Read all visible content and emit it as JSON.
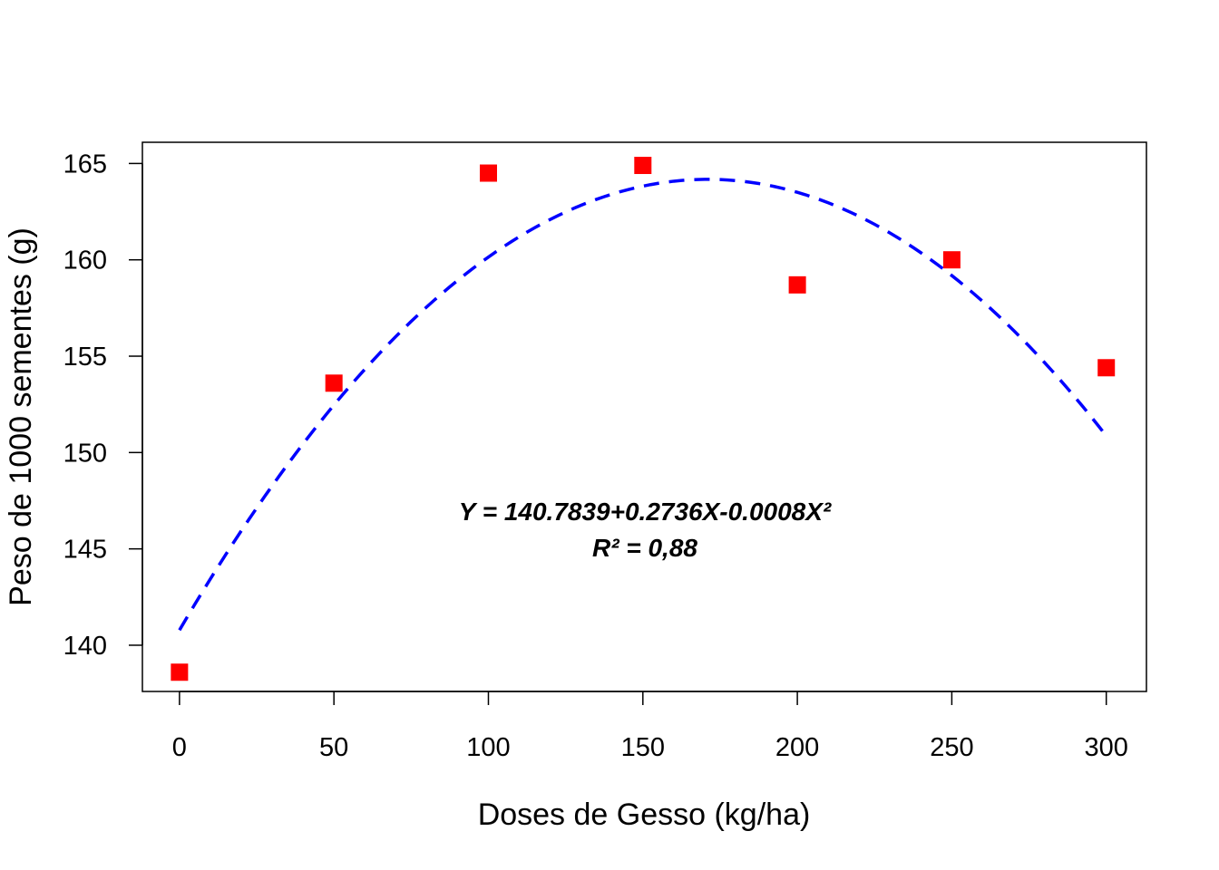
{
  "chart_data": {
    "type": "scatter",
    "xlabel": "Doses de Gesso (kg/ha)",
    "ylabel": "Peso de 1000 sementes (g)",
    "xlim": [
      -12,
      313
    ],
    "ylim": [
      137.6,
      166.1
    ],
    "x_ticks": [
      0,
      50,
      100,
      150,
      200,
      250,
      300
    ],
    "y_ticks": [
      140,
      145,
      150,
      155,
      160,
      165
    ],
    "grid": false,
    "points": {
      "color": "#ff0000",
      "marker": "square",
      "x": [
        0,
        50,
        100,
        150,
        200,
        250,
        300
      ],
      "y": [
        138.6,
        153.6,
        164.5,
        164.9,
        158.7,
        160.0,
        154.4
      ]
    },
    "fit": {
      "color": "#0000ff",
      "style": "dashed",
      "coefficients": [
        140.7839,
        0.2736,
        -0.0008
      ],
      "x_range": [
        0,
        300
      ]
    },
    "annotations": [
      "Y = 140.7839+0.2736X-0.0008X²",
      "R² = 0,88"
    ]
  }
}
